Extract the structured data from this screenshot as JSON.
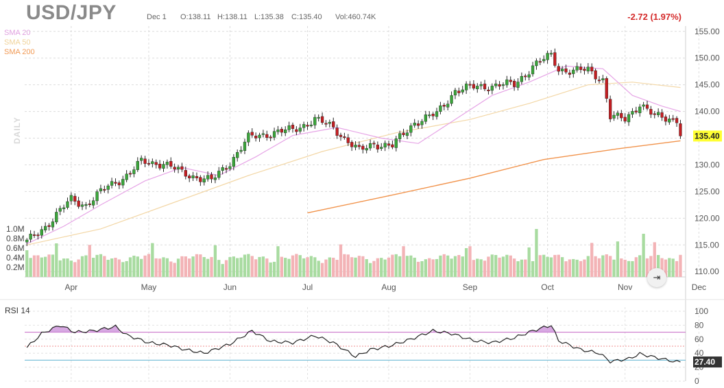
{
  "header": {
    "symbol": "USD/JPY",
    "date": "Dec 1",
    "open": "O:138.11",
    "high": "H:138.11",
    "low": "L:135.38",
    "close": "C:135.40",
    "volume": "Vol:460.74K",
    "change": "-2.72 (1.97%)"
  },
  "legend": {
    "sma20": "SMA 20",
    "sma50": "SMA 50",
    "sma200": "SMA 200",
    "daily": "DAILY"
  },
  "rsi_panel": {
    "title": "RSI 14"
  },
  "goto_latest_icon": "arrow-to-right-icon",
  "colors": {
    "up": "#3aa63a",
    "down": "#c41e22",
    "sma20": "#e6a4e6",
    "sma50": "#f3d7a6",
    "sma200": "#f1924a",
    "rsi_line": "#222222",
    "rsi_overbought": "#c466c4",
    "rsi_oversold": "#5fb3d0",
    "rsi_fill": "#c98bd8",
    "price_tag": "#ffff33",
    "rsi_tag": "#333333"
  },
  "chart_data": [
    {
      "type": "candlestick",
      "title": "USD/JPY",
      "x_axis": {
        "months": [
          "Apr",
          "May",
          "Jun",
          "Jul",
          "Aug",
          "Sep",
          "Oct",
          "Nov",
          "Dec"
        ],
        "month_day_index": [
          12,
          33,
          55,
          76,
          98,
          120,
          141,
          162,
          182
        ]
      },
      "y_axis": {
        "ticks": [
          "110.00",
          "115.00",
          "120.00",
          "125.00",
          "130.00",
          "135.00",
          "140.00",
          "145.00",
          "150.00",
          "155.00"
        ],
        "range": [
          109,
          156
        ],
        "last_price_label": "135.40"
      },
      "volume_axis": {
        "ticks": [
          "0.2M",
          "0.4M",
          "0.6M",
          "0.8M",
          "1.0M"
        ],
        "range": [
          0,
          1.6
        ]
      },
      "ohlc_anchors": [
        {
          "day": 0,
          "close": 115.5
        },
        {
          "day": 5,
          "close": 118.5
        },
        {
          "day": 12,
          "close": 123.5
        },
        {
          "day": 16,
          "close": 122.5
        },
        {
          "day": 22,
          "close": 126.0
        },
        {
          "day": 27,
          "close": 128.0
        },
        {
          "day": 31,
          "close": 130.5
        },
        {
          "day": 37,
          "close": 130.3
        },
        {
          "day": 42,
          "close": 128.5
        },
        {
          "day": 50,
          "close": 127.0
        },
        {
          "day": 55,
          "close": 130.5
        },
        {
          "day": 60,
          "close": 135.0
        },
        {
          "day": 66,
          "close": 136.0
        },
        {
          "day": 72,
          "close": 136.5
        },
        {
          "day": 78,
          "close": 138.5
        },
        {
          "day": 83,
          "close": 137.0
        },
        {
          "day": 90,
          "close": 132.5
        },
        {
          "day": 94,
          "close": 134.0
        },
        {
          "day": 99,
          "close": 133.5
        },
        {
          "day": 105,
          "close": 138.0
        },
        {
          "day": 111,
          "close": 139.5
        },
        {
          "day": 116,
          "close": 144.0
        },
        {
          "day": 121,
          "close": 144.5
        },
        {
          "day": 128,
          "close": 145.0
        },
        {
          "day": 132,
          "close": 145.0
        },
        {
          "day": 137,
          "close": 148.5
        },
        {
          "day": 142,
          "close": 150.5
        },
        {
          "day": 144,
          "close": 148.0
        },
        {
          "day": 148,
          "close": 147.5
        },
        {
          "day": 152,
          "close": 147.8
        },
        {
          "day": 156,
          "close": 146.0
        },
        {
          "day": 158,
          "close": 139.0
        },
        {
          "day": 162,
          "close": 138.5
        },
        {
          "day": 166,
          "close": 141.5
        },
        {
          "day": 170,
          "close": 139.0
        },
        {
          "day": 176,
          "close": 138.6
        },
        {
          "day": 177,
          "close": 135.4
        }
      ],
      "sma20_points": [
        [
          0,
          115.2
        ],
        [
          10,
          118.5
        ],
        [
          20,
          122.5
        ],
        [
          32,
          127.0
        ],
        [
          42,
          129.5
        ],
        [
          52,
          128.0
        ],
        [
          62,
          131.5
        ],
        [
          72,
          135.5
        ],
        [
          84,
          137.0
        ],
        [
          96,
          135.0
        ],
        [
          106,
          134.0
        ],
        [
          116,
          138.5
        ],
        [
          126,
          143.0
        ],
        [
          136,
          145.5
        ],
        [
          146,
          148.5
        ],
        [
          156,
          148.0
        ],
        [
          164,
          143.0
        ],
        [
          172,
          141.0
        ],
        [
          177,
          140.0
        ]
      ],
      "sma50_points": [
        [
          0,
          115.0
        ],
        [
          20,
          118.0
        ],
        [
          40,
          123.0
        ],
        [
          60,
          128.0
        ],
        [
          80,
          132.5
        ],
        [
          100,
          136.0
        ],
        [
          120,
          138.5
        ],
        [
          136,
          141.5
        ],
        [
          152,
          145.0
        ],
        [
          164,
          145.5
        ],
        [
          177,
          144.5
        ]
      ],
      "sma200_points": [
        [
          76,
          121.0
        ],
        [
          100,
          124.5
        ],
        [
          120,
          127.5
        ],
        [
          140,
          131.0
        ],
        [
          160,
          133.0
        ],
        [
          177,
          134.5
        ]
      ]
    },
    {
      "type": "line",
      "title": "RSI 14",
      "y_axis": {
        "ticks": [
          "0",
          "20",
          "40",
          "60",
          "80",
          "100"
        ],
        "range": [
          0,
          100
        ],
        "levels": [
          70,
          50,
          30
        ],
        "last_value_label": "27.40"
      },
      "rsi_points": [
        [
          0,
          48
        ],
        [
          4,
          68
        ],
        [
          9,
          80
        ],
        [
          13,
          70
        ],
        [
          18,
          72
        ],
        [
          24,
          78
        ],
        [
          27,
          66
        ],
        [
          33,
          55
        ],
        [
          38,
          52
        ],
        [
          43,
          45
        ],
        [
          48,
          40
        ],
        [
          55,
          53
        ],
        [
          61,
          72
        ],
        [
          66,
          57
        ],
        [
          72,
          55
        ],
        [
          78,
          65
        ],
        [
          83,
          55
        ],
        [
          89,
          35
        ],
        [
          93,
          45
        ],
        [
          98,
          50
        ],
        [
          104,
          60
        ],
        [
          110,
          72
        ],
        [
          115,
          68
        ],
        [
          121,
          58
        ],
        [
          126,
          55
        ],
        [
          132,
          62
        ],
        [
          137,
          72
        ],
        [
          142,
          80
        ],
        [
          144,
          58
        ],
        [
          150,
          45
        ],
        [
          155,
          40
        ],
        [
          158,
          28
        ],
        [
          163,
          32
        ],
        [
          166,
          39
        ],
        [
          171,
          33
        ],
        [
          176,
          27.4
        ]
      ]
    }
  ]
}
